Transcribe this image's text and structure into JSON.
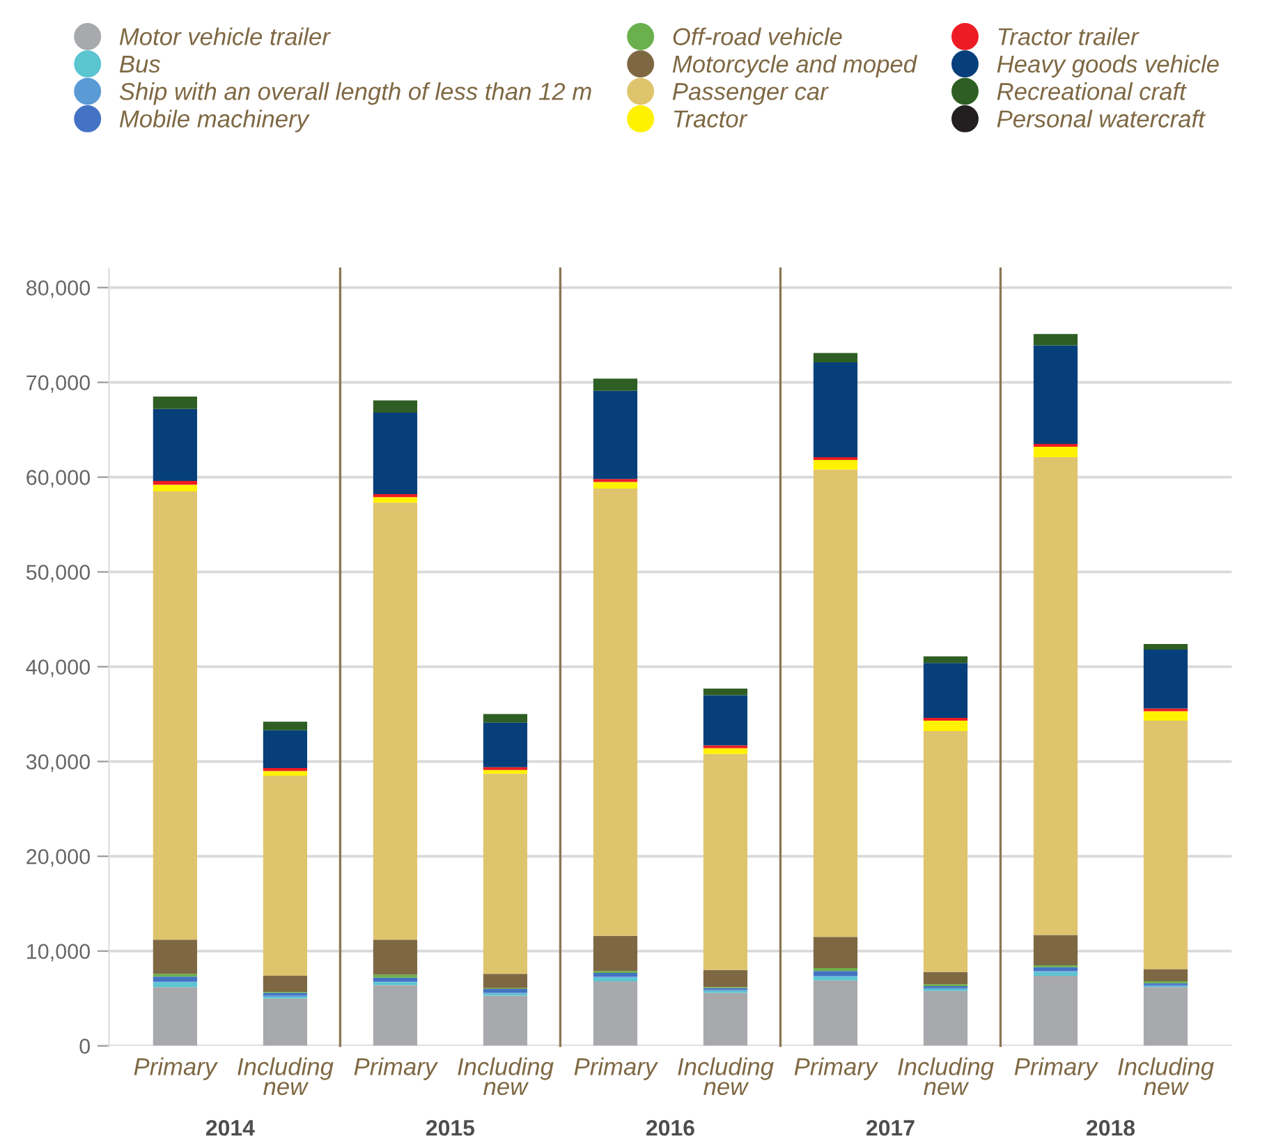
{
  "chart_data": {
    "type": "bar",
    "stacked": true,
    "categories": [
      "Primary",
      "Including new",
      "Primary",
      "Including new",
      "Primary",
      "Including new",
      "Primary",
      "Including new",
      "Primary",
      "Including new"
    ],
    "annotations": [
      "2014",
      "2015",
      "2016",
      "2017",
      "2018"
    ],
    "series": [
      {
        "name": "Motor vehicle trailer",
        "color": "#a7a9ac",
        "values": [
          6200,
          5000,
          6400,
          5300,
          6800,
          5600,
          6900,
          5800,
          7400,
          6200
        ]
      },
      {
        "name": "Bus",
        "color": "#5bc5d0",
        "values": [
          500,
          200,
          300,
          200,
          400,
          200,
          400,
          200,
          400,
          100
        ]
      },
      {
        "name": "Ship with an overall length of less than 12 m",
        "color": "#5b9bd5",
        "values": [
          100,
          100,
          100,
          100,
          100,
          100,
          100,
          100,
          100,
          100
        ]
      },
      {
        "name": "Mobile machinery",
        "color": "#4472c4",
        "values": [
          500,
          300,
          400,
          400,
          400,
          200,
          500,
          200,
          400,
          200
        ]
      },
      {
        "name": "Off-road vehicle",
        "color": "#6ab04c",
        "values": [
          300,
          100,
          300,
          100,
          200,
          100,
          300,
          200,
          200,
          200
        ]
      },
      {
        "name": "Motorcycle and moped",
        "color": "#7e6843",
        "values": [
          3600,
          1700,
          3700,
          1500,
          3700,
          1800,
          3300,
          1300,
          3200,
          1300
        ]
      },
      {
        "name": "Passenger car",
        "color": "#dfc46e",
        "values": [
          47300,
          21100,
          46100,
          21100,
          47200,
          22800,
          49300,
          25400,
          50400,
          26200
        ]
      },
      {
        "name": "Tractor",
        "color": "#fff200",
        "values": [
          700,
          500,
          600,
          400,
          700,
          600,
          1000,
          1100,
          1100,
          1000
        ]
      },
      {
        "name": "Tractor trailer",
        "color": "#ed1c24",
        "values": [
          400,
          300,
          300,
          300,
          300,
          300,
          300,
          300,
          300,
          300
        ]
      },
      {
        "name": "Heavy goods vehicle",
        "color": "#063f7a",
        "values": [
          7600,
          4000,
          8600,
          4700,
          9300,
          5300,
          10000,
          5800,
          10400,
          6200
        ]
      },
      {
        "name": "Recreational craft",
        "color": "#2e5e23",
        "values": [
          1300,
          900,
          1300,
          900,
          1300,
          700,
          1000,
          700,
          1200,
          600
        ]
      },
      {
        "name": "Personal watercraft",
        "color": "#231f20",
        "values": [
          null,
          null,
          null,
          null,
          null,
          null,
          null,
          null,
          null,
          null
        ]
      }
    ],
    "ylim": [
      0,
      82000
    ],
    "yticks": [
      {
        "value": 0,
        "label": "0"
      },
      {
        "value": 10000,
        "label": "10,000"
      },
      {
        "value": 20000,
        "label": "20,000"
      },
      {
        "value": 30000,
        "label": "30,000"
      },
      {
        "value": 40000,
        "label": "40,000"
      },
      {
        "value": 50000,
        "label": "50,000"
      },
      {
        "value": 60000,
        "label": "60,000"
      },
      {
        "value": 70000,
        "label": "70,000"
      },
      {
        "value": 80000,
        "label": "80,000"
      }
    ],
    "grid": "y",
    "legend": "top"
  }
}
